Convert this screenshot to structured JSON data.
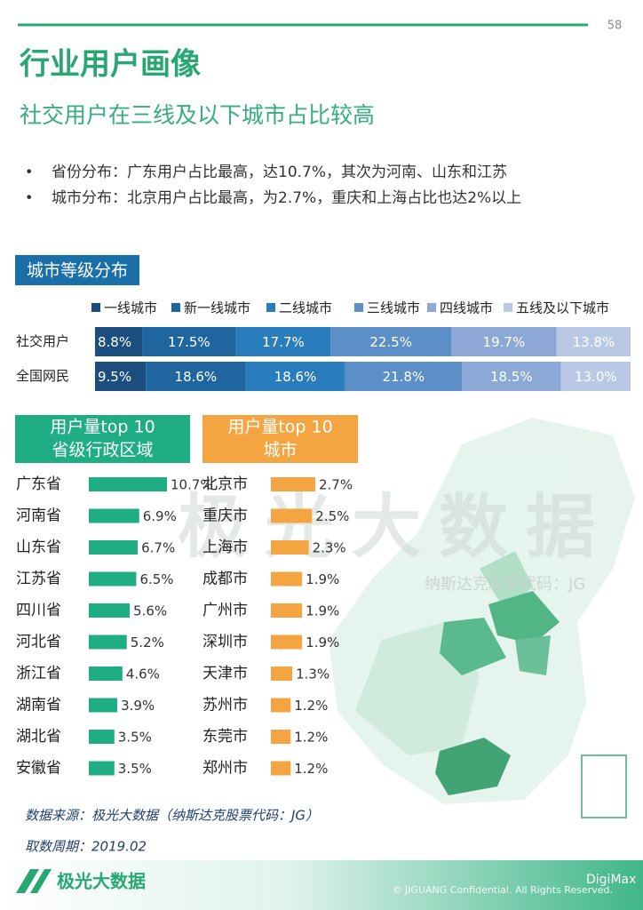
{
  "header": {
    "page_number": "58",
    "title": "行业用户画像",
    "subtitle": "社交用户在三线及以下城市占比较高"
  },
  "bullets": [
    "省份分布：广东用户占比最高，达10.7%，其次为河南、山东和江苏",
    "城市分布：北京用户占比最高，为2.7%，重庆和上海占比也达2%以上"
  ],
  "chart_data": [
    {
      "type": "stacked_bar",
      "title": "城市等级分布",
      "categories": [
        "社交用户",
        "全国网民"
      ],
      "series": [
        {
          "name": "一线城市",
          "color": "#1b4d7e",
          "values": [
            8.8,
            9.5
          ],
          "value_labels": [
            "8.8%",
            "9.5%"
          ]
        },
        {
          "name": "新一线城市",
          "color": "#1f66a0",
          "values": [
            17.5,
            18.6
          ],
          "value_labels": [
            "17.5%",
            "18.6%"
          ]
        },
        {
          "name": "二线城市",
          "color": "#2a7dbd",
          "values": [
            17.7,
            18.6
          ],
          "value_labels": [
            "17.7%",
            "18.6%"
          ]
        },
        {
          "name": "三线城市",
          "color": "#5c8ec8",
          "values": [
            22.5,
            21.8
          ],
          "value_labels": [
            "22.5%",
            "21.8%"
          ]
        },
        {
          "name": "四线城市",
          "color": "#8ba8d6",
          "values": [
            19.7,
            18.5
          ],
          "value_labels": [
            "19.7%",
            "18.5%"
          ]
        },
        {
          "name": "五线及以下城市",
          "color": "#b9c9e5",
          "values": [
            13.8,
            13
          ],
          "value_labels": [
            "13.8%",
            "13.0%"
          ]
        }
      ]
    },
    {
      "type": "hbar",
      "title": [
        "用户量top 10",
        "省级行政区域"
      ],
      "color": "#1fae84",
      "categories": [
        "广东省",
        "河南省",
        "山东省",
        "江苏省",
        "四川省",
        "河北省",
        "浙江省",
        "湖南省",
        "湖北省",
        "安徽省"
      ],
      "values": [
        10.7,
        6.9,
        6.7,
        6.5,
        5.6,
        5.2,
        4.6,
        3.9,
        3.5,
        3.5
      ],
      "value_labels": [
        "10.7%",
        "6.9%",
        "6.7%",
        "6.5%",
        "5.6%",
        "5.2%",
        "4.6%",
        "3.9%",
        "3.5%",
        "3.5%"
      ]
    },
    {
      "type": "hbar",
      "title": [
        "用户量top 10",
        "城市"
      ],
      "color": "#f5a442",
      "categories": [
        "北京市",
        "重庆市",
        "上海市",
        "成都市",
        "广州市",
        "深圳市",
        "天津市",
        "苏州市",
        "东莞市",
        "郑州市"
      ],
      "values": [
        2.7,
        2.5,
        2.3,
        1.9,
        1.9,
        1.9,
        1.3,
        1.2,
        1.2,
        1.2
      ],
      "value_labels": [
        "2.7%",
        "2.5%",
        "2.3%",
        "1.9%",
        "1.9%",
        "1.9%",
        "1.3%",
        "1.2%",
        "1.2%",
        "1.2%"
      ]
    }
  ],
  "watermark": {
    "brand": "极光大数据",
    "ticker": "纳斯达克股票代码：JG",
    "wechat": "DigiMax"
  },
  "footer": {
    "source": "数据来源：极光大数据（纳斯达克股票代码：JG）",
    "period": "取数周期：2019.02",
    "logo": "极光大数据",
    "copyright": "© JIGUANG Confidential. All Rights Reserved."
  }
}
